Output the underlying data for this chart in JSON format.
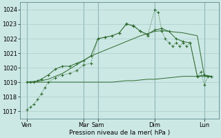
{
  "xlabel": "Pression niveau de la mer( hPa )",
  "bg_color": "#cce8e5",
  "grid_color": "#aaccca",
  "line_color": "#2d6a2d",
  "ylim": [
    1016.5,
    1024.5
  ],
  "xlim": [
    0,
    28
  ],
  "tick_positions": [
    1,
    9,
    11,
    19,
    26
  ],
  "tick_labels": [
    "Ven",
    "Mar",
    "Sam",
    "Dim",
    "Lun"
  ],
  "vline_positions": [
    1,
    9,
    11,
    19,
    26
  ],
  "series1_x": [
    1,
    2,
    3,
    4,
    5,
    6,
    7,
    8,
    9,
    10,
    11,
    12,
    13,
    14,
    15,
    16,
    17,
    18,
    19,
    20,
    21,
    22,
    23,
    24,
    25,
    26,
    27
  ],
  "series1_y": [
    1019.0,
    1019.0,
    1019.0,
    1019.0,
    1019.0,
    1019.0,
    1019.0,
    1019.0,
    1019.0,
    1019.0,
    1019.0,
    1019.0,
    1019.0,
    1019.05,
    1019.1,
    1019.1,
    1019.15,
    1019.2,
    1019.2,
    1019.25,
    1019.3,
    1019.35,
    1019.4,
    1019.4,
    1019.4,
    1019.4,
    1019.4
  ],
  "series2_x": [
    1,
    2,
    3,
    4,
    5,
    6,
    7,
    8,
    9,
    10,
    11,
    12,
    13,
    14,
    15,
    16,
    17,
    18,
    19,
    20,
    21,
    22,
    23,
    24,
    25,
    26,
    27
  ],
  "series2_y": [
    1019.0,
    1019.05,
    1019.1,
    1019.2,
    1019.4,
    1019.6,
    1019.9,
    1020.2,
    1020.5,
    1020.8,
    1021.0,
    1021.2,
    1021.4,
    1021.6,
    1021.8,
    1022.0,
    1022.2,
    1022.35,
    1022.5,
    1022.55,
    1022.5,
    1022.45,
    1022.4,
    1022.3,
    1022.2,
    1019.4,
    1019.4
  ],
  "series3_x": [
    1,
    1.5,
    2,
    2.5,
    3,
    4,
    5,
    6,
    7,
    8,
    9,
    10,
    11,
    12,
    13,
    14,
    15,
    16,
    17,
    18,
    19,
    20,
    21,
    22,
    23,
    24,
    25,
    26,
    27
  ],
  "series3_y": [
    1019.0,
    1019.0,
    1019.0,
    1019.1,
    1019.2,
    1019.5,
    1019.9,
    1020.1,
    1020.1,
    1020.3,
    1020.5,
    1020.8,
    1022.0,
    1022.1,
    1022.2,
    1022.4,
    1023.0,
    1022.9,
    1022.5,
    1022.3,
    1022.6,
    1022.7,
    1022.5,
    1022.0,
    1021.8,
    1021.7,
    1019.4,
    1019.5,
    1019.4
  ],
  "series4_x": [
    1,
    1.5,
    2,
    2.5,
    3,
    3.5,
    4,
    5,
    6,
    7,
    8,
    9,
    10,
    11,
    12,
    13,
    14,
    15,
    16,
    17,
    18,
    19,
    19.5,
    20,
    20.5,
    21,
    21.5,
    22,
    22.5,
    23,
    23.5,
    24,
    25,
    25.5,
    26,
    26.5,
    27
  ],
  "series4_y": [
    1017.1,
    1017.3,
    1017.5,
    1017.8,
    1018.2,
    1018.6,
    1019.0,
    1019.3,
    1019.5,
    1019.6,
    1019.8,
    1020.2,
    1020.3,
    1022.0,
    1022.1,
    1022.2,
    1022.4,
    1023.05,
    1022.85,
    1022.5,
    1022.2,
    1024.0,
    1023.8,
    1022.5,
    1022.0,
    1021.7,
    1021.5,
    1021.7,
    1021.5,
    1021.7,
    1021.5,
    1021.7,
    1019.4,
    1019.7,
    1018.8,
    1019.4,
    1019.4
  ]
}
